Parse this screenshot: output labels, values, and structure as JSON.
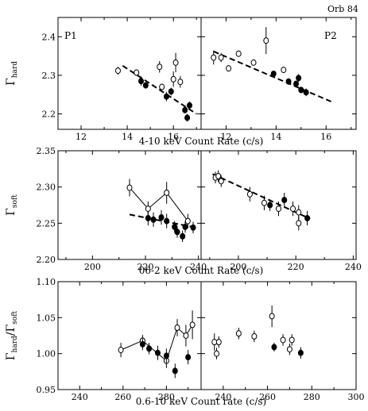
{
  "header": {
    "corner_label": "Orb 84"
  },
  "chart_data": [
    {
      "type": "scatter",
      "title": "",
      "xlabel": "4-10 keV Count Rate (c/s)",
      "ylabel_main": "Γ",
      "ylabel_sub": "hard",
      "panels": [
        {
          "label": "P1",
          "xlim": [
            11,
            17.2
          ],
          "xticks": [
            12,
            14,
            16
          ],
          "open_points": [
            {
              "x": 13.6,
              "y": 2.312,
              "err": 0.01
            },
            {
              "x": 14.4,
              "y": 2.307,
              "err": 0.008
            },
            {
              "x": 15.4,
              "y": 2.322,
              "err": 0.015
            },
            {
              "x": 15.5,
              "y": 2.27,
              "err": 0.008
            },
            {
              "x": 16.0,
              "y": 2.29,
              "err": 0.02
            },
            {
              "x": 16.1,
              "y": 2.333,
              "err": 0.025
            },
            {
              "x": 16.3,
              "y": 2.283,
              "err": 0.015
            }
          ],
          "filled_points": [
            {
              "x": 14.6,
              "y": 2.285,
              "err": 0.012
            },
            {
              "x": 14.8,
              "y": 2.274,
              "err": 0.008
            },
            {
              "x": 15.7,
              "y": 2.245,
              "err": 0.012
            },
            {
              "x": 15.9,
              "y": 2.258,
              "err": 0.01
            },
            {
              "x": 16.6,
              "y": 2.19,
              "err": 0.01
            },
            {
              "x": 16.7,
              "y": 2.222,
              "err": 0.01
            },
            {
              "x": 16.5,
              "y": 2.21,
              "err": 0.008
            }
          ],
          "trend": {
            "x": [
              13.8,
              17.0
            ],
            "y": [
              2.325,
              2.2
            ]
          }
        },
        {
          "label": "P2",
          "xlim": [
            11,
            17.2
          ],
          "xticks": [
            12,
            14,
            16
          ],
          "open_points": [
            {
              "x": 11.5,
              "y": 2.346,
              "err": 0.018
            },
            {
              "x": 11.8,
              "y": 2.346,
              "err": 0.012
            },
            {
              "x": 12.1,
              "y": 2.318,
              "err": 0.008
            },
            {
              "x": 12.5,
              "y": 2.356,
              "err": 0.008
            },
            {
              "x": 13.1,
              "y": 2.333,
              "err": 0.008
            },
            {
              "x": 13.6,
              "y": 2.39,
              "err": 0.035
            },
            {
              "x": 14.3,
              "y": 2.314,
              "err": 0.008
            }
          ],
          "filled_points": [
            {
              "x": 13.9,
              "y": 2.304,
              "err": 0.005
            },
            {
              "x": 14.5,
              "y": 2.284,
              "err": 0.008
            },
            {
              "x": 14.8,
              "y": 2.278,
              "err": 0.008
            },
            {
              "x": 14.9,
              "y": 2.293,
              "err": 0.01
            },
            {
              "x": 15.0,
              "y": 2.262,
              "err": 0.008
            },
            {
              "x": 15.2,
              "y": 2.256,
              "err": 0.01
            }
          ],
          "trend": {
            "x": [
              11.5,
              16.2
            ],
            "y": [
              2.362,
              2.232
            ]
          }
        }
      ],
      "ylim": [
        2.16,
        2.45
      ],
      "yticks": [
        2.2,
        2.3,
        2.4
      ]
    },
    {
      "type": "scatter",
      "title": "",
      "xlabel": "06-2 keV Count Rate (c/s)",
      "ylabel_main": "Γ",
      "ylabel_sub": "soft",
      "panels": [
        {
          "label": "",
          "xlim": [
            187,
            241
          ],
          "xticks": [
            200,
            220,
            240
          ],
          "open_points": [
            {
              "x": 214,
              "y": 2.299,
              "err": 0.012
            },
            {
              "x": 221,
              "y": 2.27,
              "err": 0.01
            },
            {
              "x": 228,
              "y": 2.292,
              "err": 0.015
            },
            {
              "x": 236,
              "y": 2.253,
              "err": 0.01
            }
          ],
          "filled_points": [
            {
              "x": 221,
              "y": 2.257,
              "err": 0.01
            },
            {
              "x": 223,
              "y": 2.255,
              "err": 0.01
            },
            {
              "x": 226,
              "y": 2.258,
              "err": 0.01
            },
            {
              "x": 228,
              "y": 2.253,
              "err": 0.01
            },
            {
              "x": 231,
              "y": 2.245,
              "err": 0.008
            },
            {
              "x": 232,
              "y": 2.238,
              "err": 0.008
            },
            {
              "x": 234,
              "y": 2.232,
              "err": 0.008
            },
            {
              "x": 235,
              "y": 2.245,
              "err": 0.008
            },
            {
              "x": 238,
              "y": 2.244,
              "err": 0.008
            }
          ],
          "polyline": {
            "x": [
              214,
              221,
              228,
              236
            ],
            "y": [
              2.299,
              2.27,
              2.292,
              2.253
            ]
          },
          "trend": {
            "x": [
              214,
              239
            ],
            "y": [
              2.262,
              2.244
            ]
          }
        },
        {
          "label": "",
          "xlim": [
            187,
            241
          ],
          "xticks": [
            200,
            220,
            240
          ],
          "open_points": [
            {
              "x": 192,
              "y": 2.313,
              "err": 0.008
            },
            {
              "x": 193,
              "y": 2.315,
              "err": 0.008
            },
            {
              "x": 194,
              "y": 2.308,
              "err": 0.008
            },
            {
              "x": 204,
              "y": 2.29,
              "err": 0.01
            },
            {
              "x": 209,
              "y": 2.278,
              "err": 0.01
            },
            {
              "x": 214,
              "y": 2.27,
              "err": 0.01
            },
            {
              "x": 219,
              "y": 2.27,
              "err": 0.01
            },
            {
              "x": 221,
              "y": 2.265,
              "err": 0.01
            },
            {
              "x": 221,
              "y": 2.25,
              "err": 0.01
            }
          ],
          "filled_points": [
            {
              "x": 211,
              "y": 2.275,
              "err": 0.008
            },
            {
              "x": 216,
              "y": 2.282,
              "err": 0.01
            },
            {
              "x": 224,
              "y": 2.257,
              "err": 0.01
            }
          ],
          "trend": {
            "x": [
              191,
              225
            ],
            "y": [
              2.318,
              2.256
            ]
          }
        }
      ],
      "ylim": [
        2.2,
        2.35
      ],
      "yticks": [
        2.2,
        2.25,
        2.3,
        2.35
      ]
    },
    {
      "type": "scatter",
      "title": "",
      "xlabel": "0.6-10 keV Count rate (c/s)",
      "ylabel_main": "Γ",
      "ylabel_sub": "hard",
      "ylabel_main2": "/Γ",
      "ylabel_sub2": "soft",
      "panels": [
        {
          "label": "",
          "xlim": [
            230,
            296
          ],
          "xticks": [
            240,
            260,
            280
          ],
          "open_points": [
            {
              "x": 259,
              "y": 1.005,
              "err": 0.01
            },
            {
              "x": 269,
              "y": 1.018,
              "err": 0.008
            },
            {
              "x": 280,
              "y": 0.99,
              "err": 0.01
            },
            {
              "x": 285,
              "y": 1.036,
              "err": 0.012
            },
            {
              "x": 289,
              "y": 1.025,
              "err": 0.015
            },
            {
              "x": 292,
              "y": 1.04,
              "err": 0.02
            }
          ],
          "filled_points": [
            {
              "x": 269,
              "y": 1.013,
              "err": 0.008
            },
            {
              "x": 272,
              "y": 1.007,
              "err": 0.008
            },
            {
              "x": 276,
              "y": 1.001,
              "err": 0.01
            },
            {
              "x": 280,
              "y": 0.997,
              "err": 0.01
            },
            {
              "x": 284,
              "y": 0.976,
              "err": 0.01
            },
            {
              "x": 290,
              "y": 0.995,
              "err": 0.01
            }
          ],
          "polyline": {
            "x": [
              259,
              269,
              280,
              285,
              289,
              292
            ],
            "y": [
              1.005,
              1.018,
              0.99,
              1.036,
              1.025,
              1.04
            ]
          }
        },
        {
          "label": "",
          "xlim": [
            230,
            300
          ],
          "xticks": [
            240,
            260,
            280,
            300
          ],
          "open_points": [
            {
              "x": 236,
              "y": 1.016,
              "err": 0.012
            },
            {
              "x": 237,
              "y": 1.0,
              "err": 0.008
            },
            {
              "x": 238,
              "y": 1.016,
              "err": 0.008
            },
            {
              "x": 247,
              "y": 1.028,
              "err": 0.008
            },
            {
              "x": 254,
              "y": 1.024,
              "err": 0.008
            },
            {
              "x": 262,
              "y": 1.052,
              "err": 0.015
            },
            {
              "x": 267,
              "y": 1.019,
              "err": 0.008
            },
            {
              "x": 270,
              "y": 1.006,
              "err": 0.008
            },
            {
              "x": 271,
              "y": 1.019,
              "err": 0.008
            }
          ],
          "filled_points": [
            {
              "x": 263,
              "y": 1.009,
              "err": 0.006
            },
            {
              "x": 275,
              "y": 1.001,
              "err": 0.008
            }
          ]
        }
      ],
      "ylim": [
        0.95,
        1.1
      ],
      "yticks": [
        0.95,
        1.0,
        1.05,
        1.1
      ]
    }
  ]
}
